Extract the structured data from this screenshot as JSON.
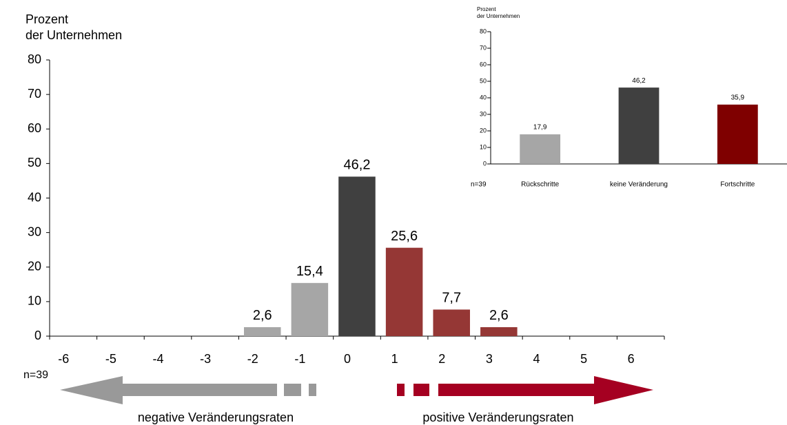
{
  "main": {
    "chart_data": {
      "type": "bar",
      "ylabel": [
        "Prozent",
        "der Unternehmen"
      ],
      "categories": [
        "-6",
        "-5",
        "-4",
        "-3",
        "-2",
        "-1",
        "0",
        "1",
        "2",
        "3",
        "4",
        "5",
        "6"
      ],
      "values": [
        null,
        null,
        null,
        null,
        2.6,
        15.4,
        46.2,
        25.6,
        7.7,
        2.6,
        null,
        null,
        null
      ],
      "value_labels": [
        null,
        null,
        null,
        null,
        "2,6",
        "15,4",
        "46,2",
        "25,6",
        "7,7",
        "2,6",
        null,
        null,
        null
      ],
      "colors": [
        "#a6a6a6",
        "#a6a6a6",
        "#a6a6a6",
        "#a6a6a6",
        "#a6a6a6",
        "#a6a6a6",
        "#404040",
        "#953735",
        "#953735",
        "#953735",
        "#953735",
        "#953735",
        "#953735"
      ],
      "ylim": [
        0,
        80
      ],
      "yticks": [
        0,
        10,
        20,
        30,
        40,
        50,
        60,
        70,
        80
      ],
      "note": "n=39",
      "annotations": [
        "negative Veränderungsraten",
        "positive Veränderungsraten"
      ]
    }
  },
  "inset": {
    "chart_data": {
      "type": "bar",
      "ylabel": [
        "Prozent",
        "der Unternehmen"
      ],
      "categories": [
        "Rückschritte",
        "keine Veränderung",
        "Fortschritte"
      ],
      "values": [
        17.9,
        46.2,
        35.9
      ],
      "value_labels": [
        "17,9",
        "46,2",
        "35,9"
      ],
      "colors": [
        "#a6a6a6",
        "#404040",
        "#7f0000"
      ],
      "ylim": [
        0,
        80
      ],
      "yticks": [
        0,
        10,
        20,
        30,
        40,
        50,
        60,
        70,
        80
      ],
      "note": "n=39"
    }
  }
}
